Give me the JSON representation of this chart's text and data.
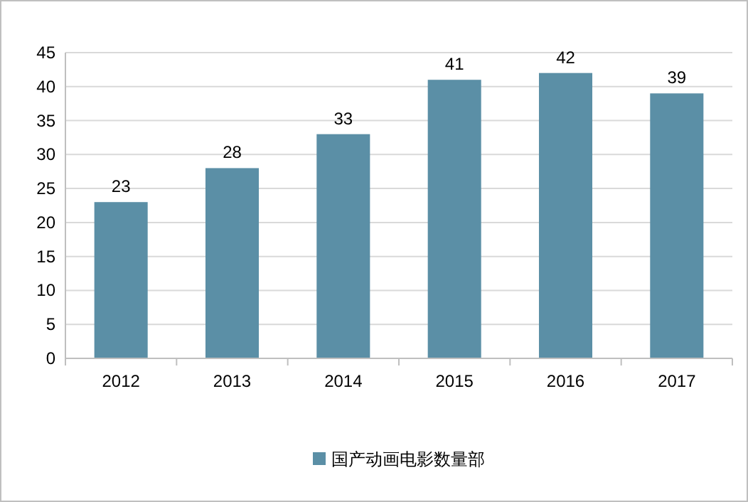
{
  "chart_data": {
    "type": "bar",
    "categories": [
      "2012",
      "2013",
      "2014",
      "2015",
      "2016",
      "2017"
    ],
    "series": [
      {
        "name": "国产动画电影数量部",
        "color": "#5b8fa6",
        "values": [
          23,
          28,
          33,
          41,
          42,
          39
        ]
      }
    ],
    "ylim": [
      0,
      45
    ],
    "yticks": [
      0,
      5,
      10,
      15,
      20,
      25,
      30,
      35,
      40,
      45
    ],
    "grid": "y",
    "legend": "bottom",
    "data_labels": true
  }
}
